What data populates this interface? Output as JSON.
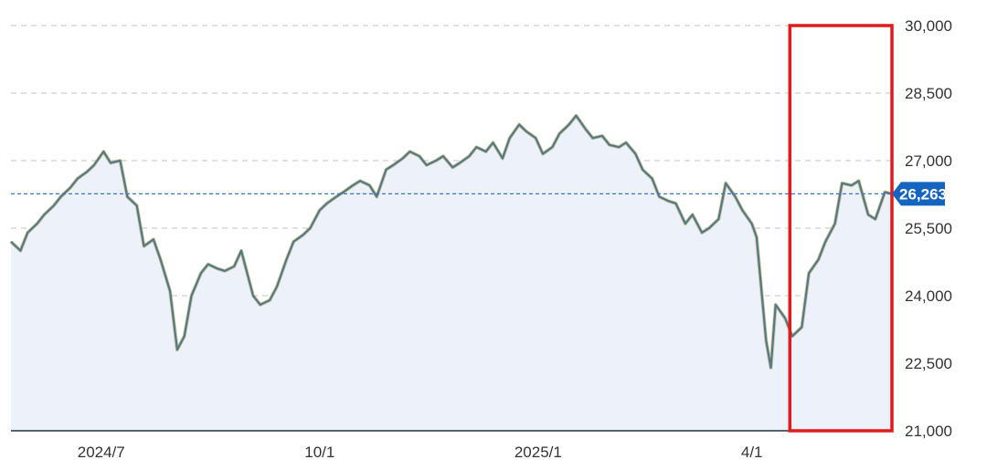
{
  "chart_data": {
    "type": "area",
    "title": "",
    "xlabel": "",
    "ylabel": "",
    "ylim": [
      21000,
      30000
    ],
    "y_ticks": [
      "30,000",
      "28,500",
      "27,000",
      "25,500",
      "24,000",
      "22,500",
      "21,000"
    ],
    "x_ticks": [
      "2024/7",
      "10/1",
      "2025/1",
      "4/1"
    ],
    "x_tick_dates": [
      "2024-07-01",
      "2024-10-01",
      "2025-01-01",
      "2025-04-01"
    ],
    "x_range": [
      "2024-05-24",
      "2025-05-30"
    ],
    "grid": true,
    "last_value": 26263,
    "last_value_label": "26,263",
    "colors": {
      "line": "#4f7b8c",
      "line_glow": "#c9a24a",
      "area": "#edf2fa",
      "reference_line": "#3a72c6",
      "last_badge": "#1565c0",
      "highlight_box": "#e01b1b"
    },
    "highlight": {
      "x_start": "2025-04-17",
      "x_end": "2025-05-30",
      "y_range": [
        21000,
        30000
      ]
    },
    "series": [
      {
        "x": [
          "2024-05-24",
          "2024-05-28",
          "2024-05-31",
          "2024-06-04",
          "2024-06-07",
          "2024-06-11",
          "2024-06-14",
          "2024-06-18",
          "2024-06-21",
          "2024-06-25",
          "2024-06-28",
          "2024-07-02",
          "2024-07-05",
          "2024-07-09",
          "2024-07-12",
          "2024-07-16",
          "2024-07-19",
          "2024-07-23",
          "2024-07-26",
          "2024-07-30",
          "2024-08-02",
          "2024-08-05",
          "2024-08-08",
          "2024-08-12",
          "2024-08-15",
          "2024-08-19",
          "2024-08-22",
          "2024-08-26",
          "2024-08-29",
          "2024-09-03",
          "2024-09-06",
          "2024-09-10",
          "2024-09-13",
          "2024-09-17",
          "2024-09-20",
          "2024-09-24",
          "2024-09-27",
          "2024-10-01",
          "2024-10-04",
          "2024-10-08",
          "2024-10-11",
          "2024-10-15",
          "2024-10-18",
          "2024-10-22",
          "2024-10-25",
          "2024-10-29",
          "2024-11-01",
          "2024-11-05",
          "2024-11-08",
          "2024-11-12",
          "2024-11-15",
          "2024-11-19",
          "2024-11-22",
          "2024-11-26",
          "2024-11-29",
          "2024-12-03",
          "2024-12-06",
          "2024-12-10",
          "2024-12-13",
          "2024-12-17",
          "2024-12-20",
          "2024-12-24",
          "2024-12-27",
          "2024-12-31",
          "2025-01-03",
          "2025-01-07",
          "2025-01-10",
          "2025-01-14",
          "2025-01-17",
          "2025-01-21",
          "2025-01-24",
          "2025-01-28",
          "2025-01-31",
          "2025-02-04",
          "2025-02-07",
          "2025-02-11",
          "2025-02-14",
          "2025-02-18",
          "2025-02-21",
          "2025-02-25",
          "2025-02-28",
          "2025-03-04",
          "2025-03-07",
          "2025-03-11",
          "2025-03-14",
          "2025-03-18",
          "2025-03-21",
          "2025-03-25",
          "2025-03-28",
          "2025-04-01",
          "2025-04-03",
          "2025-04-07",
          "2025-04-09",
          "2025-04-11",
          "2025-04-15",
          "2025-04-18",
          "2025-04-22",
          "2025-04-25",
          "2025-04-29",
          "2025-05-02",
          "2025-05-06",
          "2025-05-09",
          "2025-05-13",
          "2025-05-16",
          "2025-05-20",
          "2025-05-23",
          "2025-05-27",
          "2025-05-30"
        ],
        "y": [
          25200,
          25000,
          25400,
          25600,
          25800,
          26000,
          26200,
          26400,
          26600,
          26750,
          26900,
          27200,
          26950,
          27000,
          26200,
          26000,
          25100,
          25250,
          24800,
          24100,
          22800,
          23100,
          24000,
          24500,
          24700,
          24600,
          24550,
          24650,
          25000,
          24000,
          23800,
          23900,
          24200,
          24800,
          25200,
          25350,
          25500,
          25900,
          26050,
          26200,
          26300,
          26450,
          26550,
          26450,
          26200,
          26800,
          26900,
          27050,
          27200,
          27100,
          26900,
          27000,
          27100,
          26850,
          26950,
          27100,
          27300,
          27200,
          27400,
          27050,
          27500,
          27800,
          27650,
          27500,
          27150,
          27300,
          27600,
          27800,
          28000,
          27700,
          27500,
          27550,
          27350,
          27300,
          27400,
          27150,
          26800,
          26600,
          26200,
          26100,
          26050,
          25600,
          25800,
          25400,
          25500,
          25700,
          26500,
          26200,
          25900,
          25600,
          25300,
          23000,
          22400,
          23800,
          23500,
          23100,
          23300,
          24500,
          24800,
          25200,
          25600,
          26500,
          26450,
          26550,
          25800,
          25700,
          26300,
          26263
        ]
      }
    ]
  }
}
